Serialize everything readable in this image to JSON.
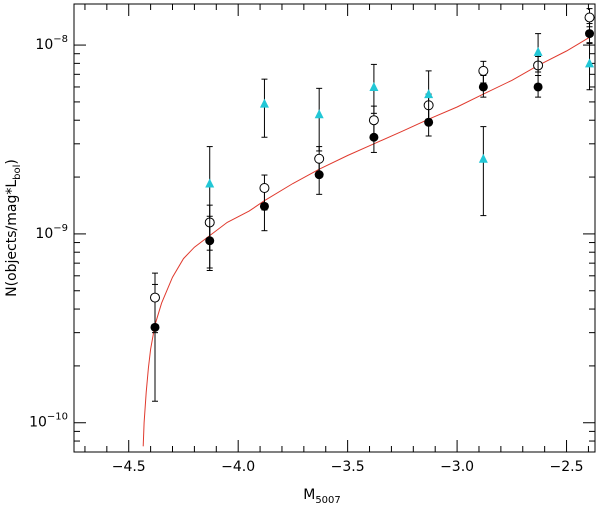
{
  "chart_data": {
    "type": "scatter",
    "xlabel": {
      "main": "M",
      "sub": "5007"
    },
    "ylabel": {
      "pre": "N(objects/mag*L",
      "sub": "bol",
      "post": ")"
    },
    "xlim": [
      -4.75,
      -2.37
    ],
    "ylim": [
      7e-11,
      1.65e-08
    ],
    "yscale": "log",
    "x_ticks": [
      {
        "value": -4.5,
        "label": "−4.5"
      },
      {
        "value": -4.0,
        "label": "−4.0"
      },
      {
        "value": -3.5,
        "label": "−3.5"
      },
      {
        "value": -3.0,
        "label": "−3.0"
      },
      {
        "value": -2.5,
        "label": "−2.5"
      }
    ],
    "y_ticks": [
      {
        "value": 1e-10,
        "base": "10",
        "exp": "−10"
      },
      {
        "value": 1e-09,
        "base": "10",
        "exp": "−9"
      },
      {
        "value": 1e-08,
        "base": "10",
        "exp": "−8"
      }
    ],
    "series": [
      {
        "marker": "filled-circle",
        "color": "#000000",
        "points": [
          {
            "x": -4.38,
            "y": 3.2e-10,
            "lo": 1.3e-10,
            "hi": 5.4e-10
          },
          {
            "x": -4.13,
            "y": 9.2e-10,
            "lo": 6.4e-10,
            "hi": 1.24e-09
          },
          {
            "x": -3.88,
            "y": 1.4e-09,
            "lo": 1.04e-09,
            "hi": 1.78e-09
          },
          {
            "x": -3.63,
            "y": 2.06e-09,
            "lo": 1.62e-09,
            "hi": 2.55e-09
          },
          {
            "x": -3.38,
            "y": 3.25e-09,
            "lo": 2.7e-09,
            "hi": 3.85e-09
          },
          {
            "x": -3.13,
            "y": 3.9e-09,
            "lo": 3.3e-09,
            "hi": 4.6e-09
          },
          {
            "x": -2.88,
            "y": 6e-09,
            "lo": 5.3e-09,
            "hi": 6.9e-09
          },
          {
            "x": -2.63,
            "y": 6e-09,
            "lo": 5.3e-09,
            "hi": 6.9e-09
          },
          {
            "x": -2.395,
            "y": 1.15e-08,
            "lo": 1.03e-08,
            "hi": 1.3e-08
          }
        ]
      },
      {
        "marker": "open-circle",
        "color": "#000000",
        "points": [
          {
            "x": -4.38,
            "y": 4.6e-10,
            "lo": 3e-10,
            "hi": 6.2e-10
          },
          {
            "x": -4.13,
            "y": 1.15e-09,
            "lo": 8.2e-10,
            "hi": 1.42e-09
          },
          {
            "x": -3.88,
            "y": 1.75e-09,
            "lo": 1.34e-09,
            "hi": 2.05e-09
          },
          {
            "x": -3.63,
            "y": 2.5e-09,
            "lo": 2.06e-09,
            "hi": 2.9e-09
          },
          {
            "x": -3.38,
            "y": 4e-09,
            "lo": 3.3e-09,
            "hi": 4.75e-09
          },
          {
            "x": -3.13,
            "y": 4.8e-09,
            "lo": 4.05e-09,
            "hi": 5.5e-09
          },
          {
            "x": -2.88,
            "y": 7.3e-09,
            "lo": 6.3e-09,
            "hi": 8.2e-09
          },
          {
            "x": -2.63,
            "y": 7.8e-09,
            "lo": 6.9e-09,
            "hi": 8.7e-09
          },
          {
            "x": -2.395,
            "y": 1.4e-08,
            "lo": 1.25e-08,
            "hi": 1.56e-08
          }
        ]
      },
      {
        "marker": "filled-triangle",
        "color": "#22c7d6",
        "points": [
          {
            "x": -4.13,
            "y": 1.85e-09,
            "lo": 6.6e-10,
            "hi": 2.9e-09
          },
          {
            "x": -3.88,
            "y": 4.9e-09,
            "lo": 3.25e-09,
            "hi": 6.6e-09
          },
          {
            "x": -3.63,
            "y": 4.3e-09,
            "lo": 2.75e-09,
            "hi": 5.9e-09
          },
          {
            "x": -3.38,
            "y": 6e-09,
            "lo": 4.35e-09,
            "hi": 7.9e-09
          },
          {
            "x": -3.13,
            "y": 5.5e-09,
            "lo": 3.95e-09,
            "hi": 7.3e-09
          },
          {
            "x": -2.88,
            "y": 2.5e-09,
            "lo": 1.25e-09,
            "hi": 3.7e-09
          },
          {
            "x": -2.63,
            "y": 9.2e-09,
            "lo": 7.2e-09,
            "hi": 1.15e-08
          },
          {
            "x": -2.395,
            "y": 8e-09,
            "lo": 5.8e-09,
            "hi": 1.02e-08
          }
        ]
      }
    ],
    "model_curve": {
      "color": "#e03a2e",
      "x": [
        -4.434,
        -4.43,
        -4.42,
        -4.41,
        -4.4,
        -4.38,
        -4.35,
        -4.3,
        -4.25,
        -4.2,
        -4.13,
        -4.05,
        -3.95,
        -3.88,
        -3.75,
        -3.63,
        -3.5,
        -3.38,
        -3.25,
        -3.13,
        -3.0,
        -2.88,
        -2.75,
        -2.63,
        -2.5,
        -2.395
      ],
      "y": [
        7.5e-11,
        1e-10,
        1.45e-10,
        1.95e-10,
        2.45e-10,
        3.3e-10,
        4.3e-10,
        5.9e-10,
        7.4e-10,
        8.5e-10,
        9.8e-10,
        1.15e-09,
        1.32e-09,
        1.5e-09,
        1.85e-09,
        2.2e-09,
        2.6e-09,
        3e-09,
        3.5e-09,
        4.05e-09,
        4.7e-09,
        5.5e-09,
        6.5e-09,
        7.8e-09,
        9.3e-09,
        1.1e-08
      ]
    }
  }
}
